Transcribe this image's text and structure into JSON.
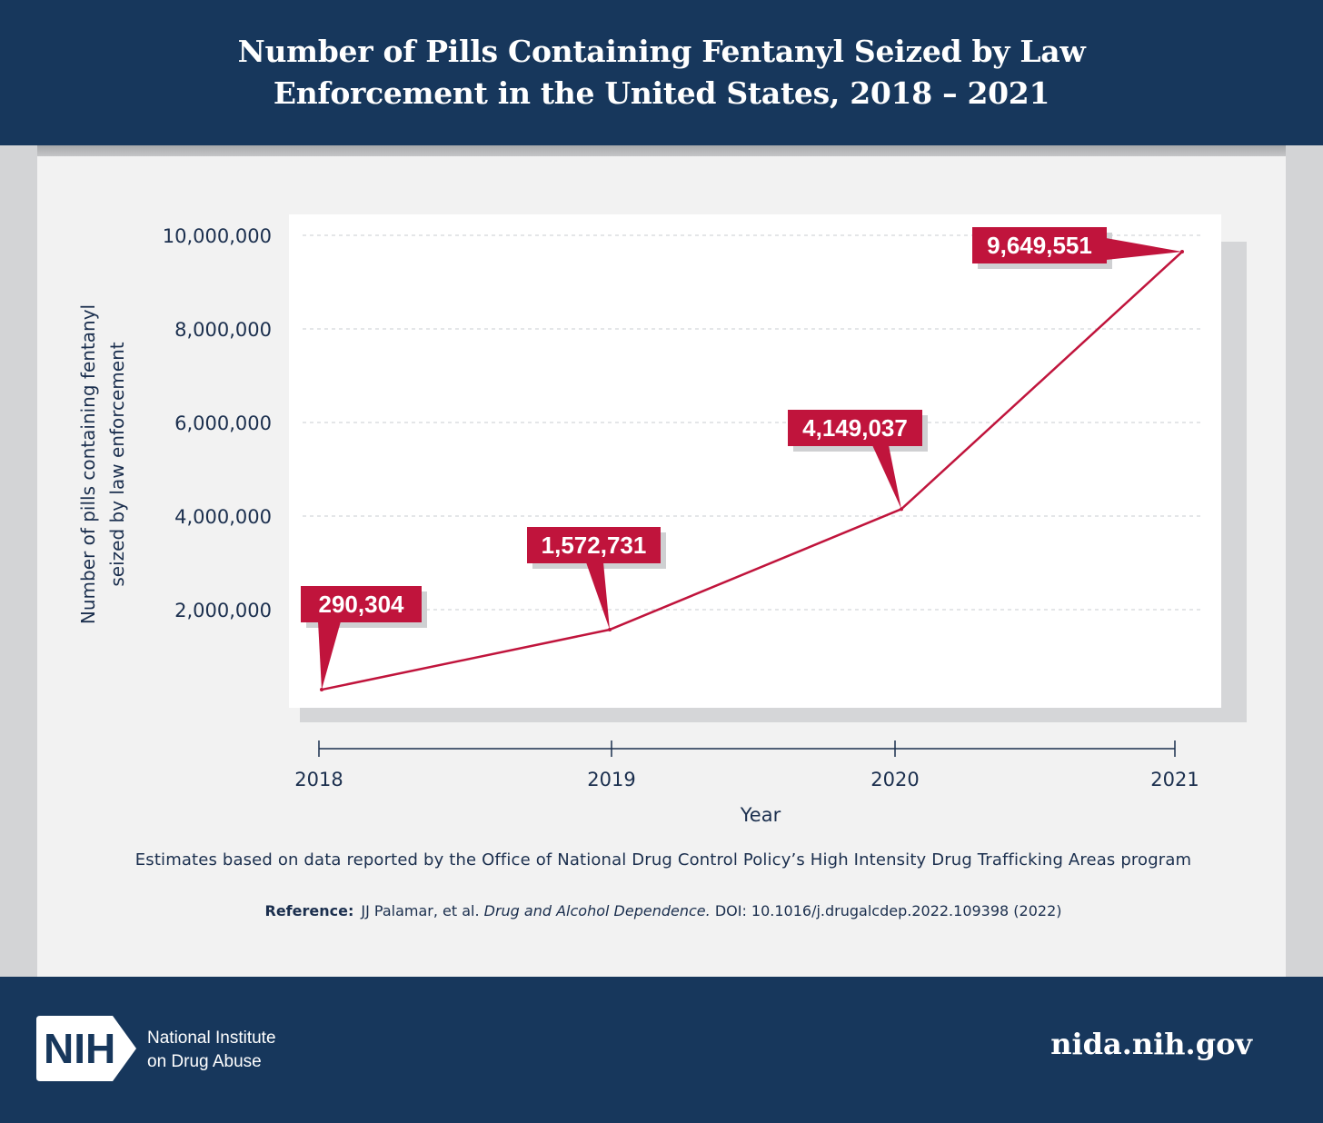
{
  "header": {
    "title_line1": "Number of Pills Containing Fentanyl Seized by Law",
    "title_line2": "Enforcement in the United States, 2018 – 2021"
  },
  "chart_data": {
    "type": "line",
    "title": "Number of Pills Containing Fentanyl Seized by Law Enforcement in the United States, 2018 – 2021",
    "xlabel": "Year",
    "ylabel_line1": "Number of pills containing fentanyl",
    "ylabel_line2": "seized by law enforcement",
    "categories": [
      "2018",
      "2019",
      "2020",
      "2021"
    ],
    "values": [
      290304,
      1572731,
      4149037,
      9649551
    ],
    "data_labels": [
      "290,304",
      "1,572,731",
      "4,149,037",
      "9,649,551"
    ],
    "y_ticks": [
      2000000,
      4000000,
      6000000,
      8000000,
      10000000
    ],
    "y_tick_labels": [
      "2,000,000",
      "4,000,000",
      "6,000,000",
      "8,000,000",
      "10,000,000"
    ],
    "ylim": [
      0,
      10000000
    ],
    "grid": "horizontal dashed",
    "legend": "none",
    "colors": {
      "line": "#c0143c",
      "label_bg": "#c0143c",
      "label_text": "#ffffff",
      "axis": "#1b2f4e"
    }
  },
  "note": "Estimates based on data reported by the Office of National Drug Control Policy’s High Intensity Drug Trafficking Areas program",
  "reference": {
    "label": "Reference:",
    "authors": "JJ Palamar, et al.",
    "journal": "Drug and Alcohol Dependence.",
    "rest": "DOI: 10.1016/j.drugalcdep.2022.109398 (2022)"
  },
  "footer": {
    "logo_text": "NIH",
    "org_line1": "National Institute",
    "org_line2": "on Drug Abuse",
    "url": "nida.nih.gov"
  }
}
